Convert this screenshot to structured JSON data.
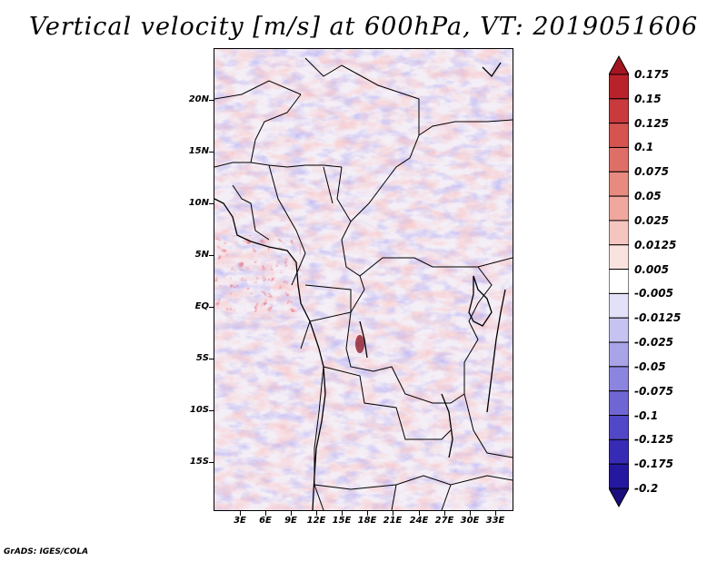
{
  "title": "Vertical velocity [m/s] at 600hPa, VT: 2019051606",
  "credit": "GrADS: IGES/COLA",
  "map": {
    "variable": "Vertical velocity",
    "units": "m/s",
    "level": "600hPa",
    "valid_time": "2019051606",
    "lat_labels": [
      "20N",
      "15N",
      "10N",
      "5N",
      "EQ",
      "5S",
      "10S",
      "15S"
    ],
    "lon_labels": [
      "3E",
      "6E",
      "9E",
      "12E",
      "15E",
      "18E",
      "21E",
      "24E",
      "27E",
      "30E",
      "33E"
    ]
  },
  "colorbar": {
    "labels": [
      "0.175",
      "0.15",
      "0.125",
      "0.1",
      "0.075",
      "0.05",
      "0.025",
      "0.0125",
      "0.005",
      "-0.005",
      "-0.0125",
      "-0.025",
      "-0.05",
      "-0.075",
      "-0.1",
      "-0.125",
      "-0.175",
      "-0.2"
    ],
    "colors": [
      "#a31520",
      "#b9222b",
      "#c93a3c",
      "#d5544f",
      "#df6f66",
      "#e78a80",
      "#efa79e",
      "#f5c6bf",
      "#fae3df",
      "#ffffff",
      "#e3e1f8",
      "#c6c3f0",
      "#a9a4e8",
      "#8c85df",
      "#6f66d4",
      "#5248c7",
      "#372bb6",
      "#2418a0",
      "#1a0d7e"
    ]
  }
}
